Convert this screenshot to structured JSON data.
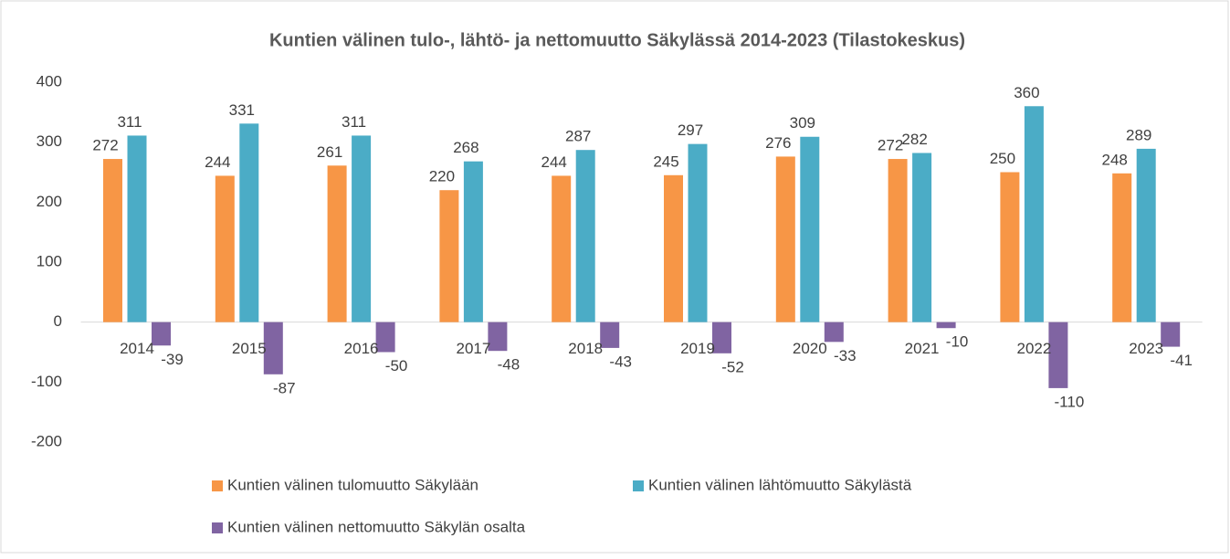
{
  "chart_data": {
    "type": "bar",
    "title": "Kuntien välinen tulo-, lähtö- ja nettomuutto Säkylässä 2014-2023 (Tilastokeskus)",
    "categories": [
      "2014",
      "2015",
      "2016",
      "2017",
      "2018",
      "2019",
      "2020",
      "2021",
      "2022",
      "2023"
    ],
    "series": [
      {
        "name": "Kuntien välinen tulomuutto Säkylään",
        "color": "#f79646",
        "values": [
          272,
          244,
          261,
          220,
          244,
          245,
          276,
          272,
          250,
          248
        ]
      },
      {
        "name": "Kuntien välinen lähtömuutto Säkylästä",
        "color": "#4bacc6",
        "values": [
          311,
          331,
          311,
          268,
          287,
          297,
          309,
          282,
          360,
          289
        ]
      },
      {
        "name": "Kuntien välinen nettomuutto Säkylän osalta",
        "color": "#8064a2",
        "values": [
          -39,
          -87,
          -50,
          -48,
          -43,
          -52,
          -33,
          -10,
          -110,
          -41
        ]
      }
    ],
    "ylim": [
      -200,
      400
    ],
    "yticks": [
      -200,
      -100,
      0,
      100,
      200,
      300,
      400
    ],
    "grid": false,
    "legend": "bottom"
  }
}
